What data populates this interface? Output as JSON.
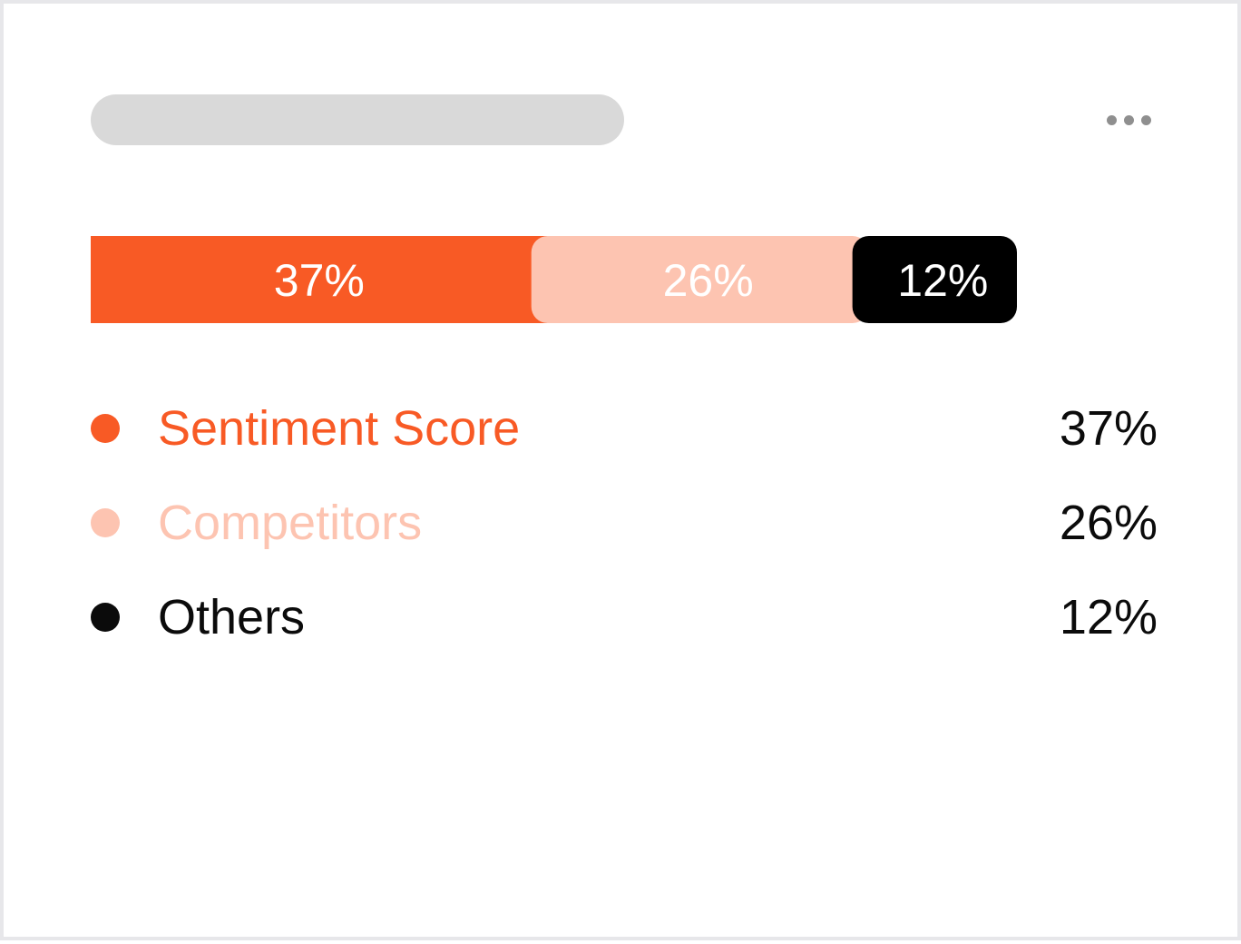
{
  "colors": {
    "placeholder": "#d9d9d9",
    "more_dots": "#8f8f8f",
    "segment_text": "#ffffff"
  },
  "header": {
    "more_icon": "more-horizontal-icon"
  },
  "chart_data": {
    "type": "bar",
    "orientation": "horizontal",
    "stacked": true,
    "categories": [
      "Sentiment Score",
      "Competitors",
      "Others"
    ],
    "values": [
      37,
      26,
      12
    ],
    "value_labels": [
      "37%",
      "26%",
      "12%"
    ],
    "colors": [
      "#f85a25",
      "#fdc4b1",
      "#000000"
    ],
    "xlim": [
      0,
      100
    ],
    "legend": "below",
    "grid": false
  },
  "legend": {
    "items": [
      {
        "label": "Sentiment Score",
        "value": "37%",
        "color": "#f85a25"
      },
      {
        "label": "Competitors",
        "value": "26%",
        "color": "#fdc4b1"
      },
      {
        "label": "Others",
        "value": "12%",
        "color": "#0b0b0b"
      }
    ]
  }
}
